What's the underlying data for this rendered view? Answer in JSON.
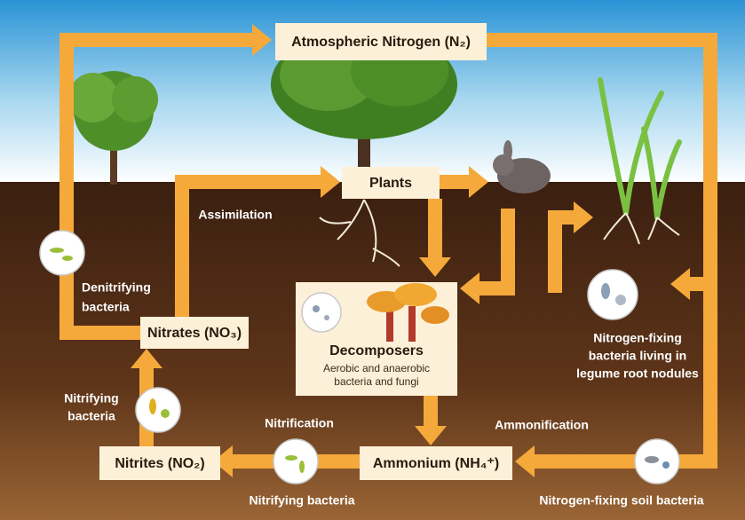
{
  "nodes": [
    {
      "label": "Atmospheric Nitrogen (N₂)"
    },
    {
      "label": "Plants"
    },
    {
      "label": "Nitrates (NO₃)"
    },
    {
      "label": "Decomposers",
      "sublabel_lines": [
        "Aerobic and anaerobic",
        "bacteria and fungi"
      ]
    },
    {
      "label": "Ammonium (NH₄⁺)"
    },
    {
      "label": "Nitrites (NO₂)"
    }
  ],
  "processes": [
    {
      "lines": [
        "Assimilation"
      ]
    },
    {
      "lines": [
        "Denitrifying",
        "bacteria"
      ]
    },
    {
      "lines": [
        "Nitrifying",
        "bacteria"
      ]
    },
    {
      "lines": [
        "Nitrification"
      ]
    },
    {
      "lines": [
        "Ammonification"
      ]
    },
    {
      "lines": [
        "Nitrifying bacteria"
      ]
    },
    {
      "lines": [
        "Nitrogen-fixing soil bacteria"
      ]
    },
    {
      "lines": [
        "Nitrogen-fixing",
        "bacteria living in",
        "legume root nodules"
      ]
    }
  ]
}
